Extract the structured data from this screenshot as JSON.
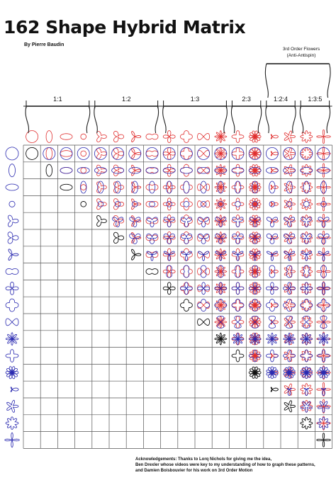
{
  "title": "162 Shape Hybrid Matrix",
  "author": "By Pierre Baudin",
  "flowers_label": {
    "line1": "3rd Order Flowers",
    "line2": "(Anti-Antispin)"
  },
  "groups": [
    {
      "label": "1:1",
      "count": 4
    },
    {
      "label": "1:2",
      "count": 4
    },
    {
      "label": "1:3",
      "count": 4
    },
    {
      "label": "2:3",
      "count": 2
    },
    {
      "label": "1:2:4",
      "count": 2
    },
    {
      "label": "1:3:5",
      "count": 2
    }
  ],
  "acknowledgements": {
    "line1": "Acknowledgements: Thanks to Lorq Nichols for giving me the idea,",
    "line2": "Ben Drexler whose videos were key to my understanding of how to graph these patterns,",
    "line3": "and Damien Boisbouvier for his work on 3rd Order Motion"
  },
  "colors": {
    "column_shapes": "#e03030",
    "row_shapes": "#2a2ab0",
    "diagonal_shapes": "#111111",
    "grid": "#555555"
  },
  "shape_count": 18
}
